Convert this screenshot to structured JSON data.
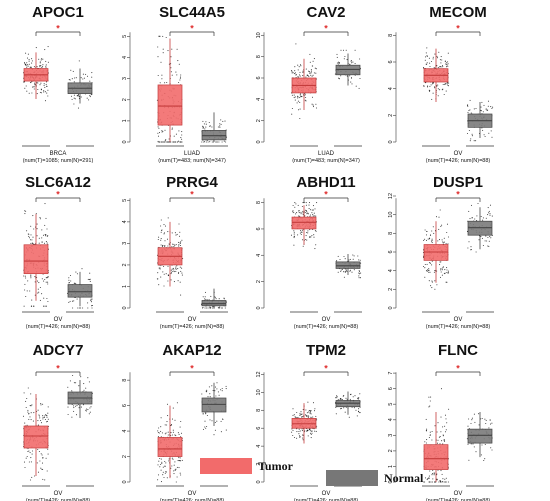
{
  "colors": {
    "tumor": "#f26b6b",
    "tumor_edge": "#c43c3c",
    "normal": "#7a7a7a",
    "normal_edge": "#444444",
    "star": "#e03030"
  },
  "legend": [
    {
      "label": "Tumor",
      "color": "#f26b6b"
    },
    {
      "label": "Normal",
      "color": "#777777"
    }
  ],
  "chart_data": [
    {
      "type": "box",
      "title": "APOC1",
      "dataset": "BRCA",
      "counts": "(num(T)=1085; num(N)=291)",
      "yticks": [
        "0",
        "2",
        "4",
        "6",
        "8",
        "10",
        "12"
      ],
      "ylim": [
        0,
        12.5
      ],
      "significance": "*",
      "series": [
        {
          "name": "Tumor",
          "q1": 6.8,
          "median": 7.5,
          "q3": 8.2,
          "whisker_low": 4.8,
          "whisker_high": 10.0,
          "spread": [
            3.4,
            11.5
          ]
        },
        {
          "name": "Normal",
          "q1": 5.4,
          "median": 6.0,
          "q3": 6.6,
          "whisker_low": 4.3,
          "whisker_high": 8.2,
          "spread": [
            3.0,
            9.5
          ]
        }
      ]
    },
    {
      "type": "box",
      "title": "SLC44A5",
      "dataset": "LUAD",
      "counts": "(num(T)=483; num(N)=347)",
      "yticks": [
        "0",
        "1",
        "2",
        "3",
        "4",
        "5"
      ],
      "ylim": [
        0,
        5.3
      ],
      "significance": "*",
      "series": [
        {
          "name": "Tumor",
          "q1": 0.8,
          "median": 1.7,
          "q3": 2.7,
          "whisker_low": 0.0,
          "whisker_high": 4.9,
          "spread": [
            0.0,
            5.0
          ]
        },
        {
          "name": "Normal",
          "q1": 0.1,
          "median": 0.3,
          "q3": 0.55,
          "whisker_low": 0.0,
          "whisker_high": 1.4,
          "spread": [
            0.0,
            2.4
          ]
        }
      ]
    },
    {
      "type": "box",
      "title": "CAV2",
      "dataset": "LUAD",
      "counts": "(num(T)=483; num(N)=347)",
      "yticks": [
        "0",
        "2",
        "4",
        "6",
        "8",
        "10"
      ],
      "ylim": [
        0,
        10.5
      ],
      "significance": "*",
      "series": [
        {
          "name": "Tumor",
          "q1": 4.6,
          "median": 5.3,
          "q3": 6.0,
          "whisker_low": 3.0,
          "whisker_high": 7.8,
          "spread": [
            2.2,
            9.4
          ]
        },
        {
          "name": "Normal",
          "q1": 6.3,
          "median": 6.8,
          "q3": 7.2,
          "whisker_low": 5.3,
          "whisker_high": 8.3,
          "spread": [
            4.4,
            8.6
          ]
        }
      ]
    },
    {
      "type": "box",
      "title": "MECOM",
      "dataset": "OV",
      "counts": "(num(T)=426; num(N)=88)",
      "yticks": [
        "0",
        "2",
        "4",
        "6",
        "8"
      ],
      "ylim": [
        0,
        8.4
      ],
      "significance": "*",
      "series": [
        {
          "name": "Tumor",
          "q1": 4.5,
          "median": 5.0,
          "q3": 5.5,
          "whisker_low": 3.0,
          "whisker_high": 7.0,
          "spread": [
            2.0,
            7.6
          ]
        },
        {
          "name": "Normal",
          "q1": 1.1,
          "median": 1.6,
          "q3": 2.1,
          "whisker_low": 0.3,
          "whisker_high": 3.0,
          "spread": [
            0.1,
            3.2
          ]
        }
      ]
    },
    {
      "type": "box",
      "title": "SLC6A12",
      "dataset": "OV",
      "counts": "(num(T)=426; num(N)=88)",
      "yticks": [
        "0",
        "1",
        "2",
        "3",
        "4",
        "5",
        "6"
      ],
      "ylim": [
        0,
        6.2
      ],
      "significance": "*",
      "series": [
        {
          "name": "Tumor",
          "q1": 1.9,
          "median": 2.6,
          "q3": 3.5,
          "whisker_low": 0.4,
          "whisker_high": 5.2,
          "spread": [
            0.1,
            5.8
          ]
        },
        {
          "name": "Normal",
          "q1": 0.6,
          "median": 0.9,
          "q3": 1.3,
          "whisker_low": 0.1,
          "whisker_high": 2.0,
          "spread": [
            0.0,
            2.2
          ]
        }
      ]
    },
    {
      "type": "box",
      "title": "PRRG4",
      "dataset": "OV",
      "counts": "(num(T)=426; num(N)=88)",
      "yticks": [
        "0",
        "1",
        "2",
        "3",
        "4",
        "5"
      ],
      "ylim": [
        0,
        5.2
      ],
      "significance": "*",
      "series": [
        {
          "name": "Tumor",
          "q1": 2.0,
          "median": 2.4,
          "q3": 2.8,
          "whisker_low": 1.0,
          "whisker_high": 4.0,
          "spread": [
            0.6,
            4.6
          ]
        },
        {
          "name": "Normal",
          "q1": 0.1,
          "median": 0.2,
          "q3": 0.35,
          "whisker_low": 0.0,
          "whisker_high": 0.9,
          "spread": [
            0.0,
            1.6
          ]
        }
      ]
    },
    {
      "type": "box",
      "title": "ABHD11",
      "dataset": "OV",
      "counts": "(num(T)=426; num(N)=88)",
      "yticks": [
        "0",
        "2",
        "4",
        "6",
        "8"
      ],
      "ylim": [
        0,
        8.5
      ],
      "significance": "*",
      "series": [
        {
          "name": "Tumor",
          "q1": 6.0,
          "median": 6.5,
          "q3": 6.9,
          "whisker_low": 4.8,
          "whisker_high": 7.8,
          "spread": [
            4.0,
            8.0
          ]
        },
        {
          "name": "Normal",
          "q1": 3.0,
          "median": 3.2,
          "q3": 3.5,
          "whisker_low": 2.5,
          "whisker_high": 4.1,
          "spread": [
            2.3,
            4.3
          ]
        }
      ]
    },
    {
      "type": "box",
      "title": "DUSP1",
      "dataset": "OV",
      "counts": "(num(T)=426; num(N)=88)",
      "yticks": [
        "0",
        "2",
        "4",
        "6",
        "8",
        "10",
        "12"
      ],
      "ylim": [
        0,
        12
      ],
      "significance": "*",
      "series": [
        {
          "name": "Tumor",
          "q1": 5.1,
          "median": 6.0,
          "q3": 6.8,
          "whisker_low": 2.7,
          "whisker_high": 9.3,
          "spread": [
            2.0,
            10.5
          ]
        },
        {
          "name": "Normal",
          "q1": 7.8,
          "median": 8.6,
          "q3": 9.3,
          "whisker_low": 6.3,
          "whisker_high": 10.8,
          "spread": [
            6.0,
            11.2
          ]
        }
      ]
    },
    {
      "type": "box",
      "title": "ADCY7",
      "dataset": "OV",
      "counts": "(num(T)=426; num(N)=88)",
      "yticks": [
        "0",
        "1",
        "2",
        "3",
        "4",
        "5"
      ],
      "ylim": [
        0,
        5.6
      ],
      "significance": "*",
      "series": [
        {
          "name": "Tumor",
          "q1": 1.7,
          "median": 2.3,
          "q3": 2.8,
          "whisker_low": 0.3,
          "whisker_high": 4.4,
          "spread": [
            0.1,
            4.7
          ]
        },
        {
          "name": "Normal",
          "q1": 3.9,
          "median": 4.2,
          "q3": 4.5,
          "whisker_low": 3.2,
          "whisker_high": 5.1,
          "spread": [
            2.4,
            5.4
          ]
        }
      ]
    },
    {
      "type": "box",
      "title": "AKAP12",
      "dataset": "OV",
      "counts": "(num(T)=426; num(N)=88)",
      "yticks": [
        "0",
        "2",
        "4",
        "6",
        "8"
      ],
      "ylim": [
        0,
        8.8
      ],
      "significance": "*",
      "series": [
        {
          "name": "Tumor",
          "q1": 2.0,
          "median": 2.6,
          "q3": 3.5,
          "whisker_low": 0.3,
          "whisker_high": 6.0,
          "spread": [
            0.0,
            7.0
          ]
        },
        {
          "name": "Normal",
          "q1": 5.5,
          "median": 6.1,
          "q3": 6.6,
          "whisker_low": 4.4,
          "whisker_high": 7.8,
          "spread": [
            3.3,
            8.0
          ]
        }
      ]
    },
    {
      "type": "box",
      "title": "TPM2",
      "dataset": "OV",
      "counts": "(num(T)=426; num(N)=88)",
      "yticks": [
        "0",
        "2",
        "4",
        "6",
        "8",
        "10",
        "12"
      ],
      "ylim": [
        0,
        12.5
      ],
      "significance": "*",
      "series": [
        {
          "name": "Tumor",
          "q1": 6.0,
          "median": 6.5,
          "q3": 7.1,
          "whisker_low": 4.3,
          "whisker_high": 8.8,
          "spread": [
            3.0,
            9.8
          ]
        },
        {
          "name": "Normal",
          "q1": 8.4,
          "median": 8.8,
          "q3": 9.1,
          "whisker_low": 7.5,
          "whisker_high": 10.1,
          "spread": [
            7.2,
            10.6
          ]
        }
      ]
    },
    {
      "type": "box",
      "title": "FLNC",
      "dataset": "OV",
      "counts": "(num(T)=426; num(N)=88)",
      "yticks": [
        "0",
        "1",
        "2",
        "3",
        "4",
        "5",
        "6",
        "7"
      ],
      "ylim": [
        0,
        7.2
      ],
      "significance": "*",
      "series": [
        {
          "name": "Tumor",
          "q1": 0.8,
          "median": 1.5,
          "q3": 2.4,
          "whisker_low": 0.0,
          "whisker_high": 4.5,
          "spread": [
            0.0,
            6.0
          ]
        },
        {
          "name": "Normal",
          "q1": 2.5,
          "median": 3.0,
          "q3": 3.4,
          "whisker_low": 1.6,
          "whisker_high": 4.5,
          "spread": [
            1.3,
            5.8
          ]
        }
      ]
    }
  ]
}
